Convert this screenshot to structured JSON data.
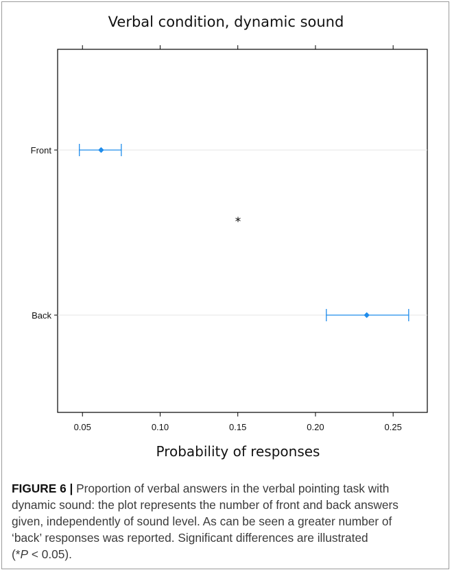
{
  "chart_data": {
    "type": "scatter",
    "title": "Verbal condition, dynamic sound",
    "xlabel": "Probability of responses",
    "ylabel": "",
    "xlim": [
      0.034,
      0.272
    ],
    "xticks": [
      0.05,
      0.1,
      0.15,
      0.2,
      0.25
    ],
    "xtick_labels": [
      "0.05",
      "0.10",
      "0.15",
      "0.20",
      "0.25"
    ],
    "categories": [
      "Front",
      "Back"
    ],
    "points": [
      {
        "label": "Front",
        "estimate": 0.062,
        "lower": 0.048,
        "upper": 0.075
      },
      {
        "label": "Back",
        "estimate": 0.233,
        "lower": 0.207,
        "upper": 0.26
      }
    ],
    "annotation": "*",
    "grid": true,
    "colors": {
      "series": "#1f8ceb",
      "gridline": "#e6e6e6"
    }
  },
  "caption": {
    "label": "FIGURE 6 |",
    "line1": " Proportion of verbal answers in the verbal pointing task with",
    "line2": "dynamic sound: the plot represents the number of front and back answers",
    "line3": "given, independently of sound level. As can be seen a greater number of",
    "line4": "‘back’ responses was reported. Significant differences are illustrated",
    "line5_pre": "(*",
    "line5_p": "P",
    "line5_post": " < 0.05)."
  }
}
